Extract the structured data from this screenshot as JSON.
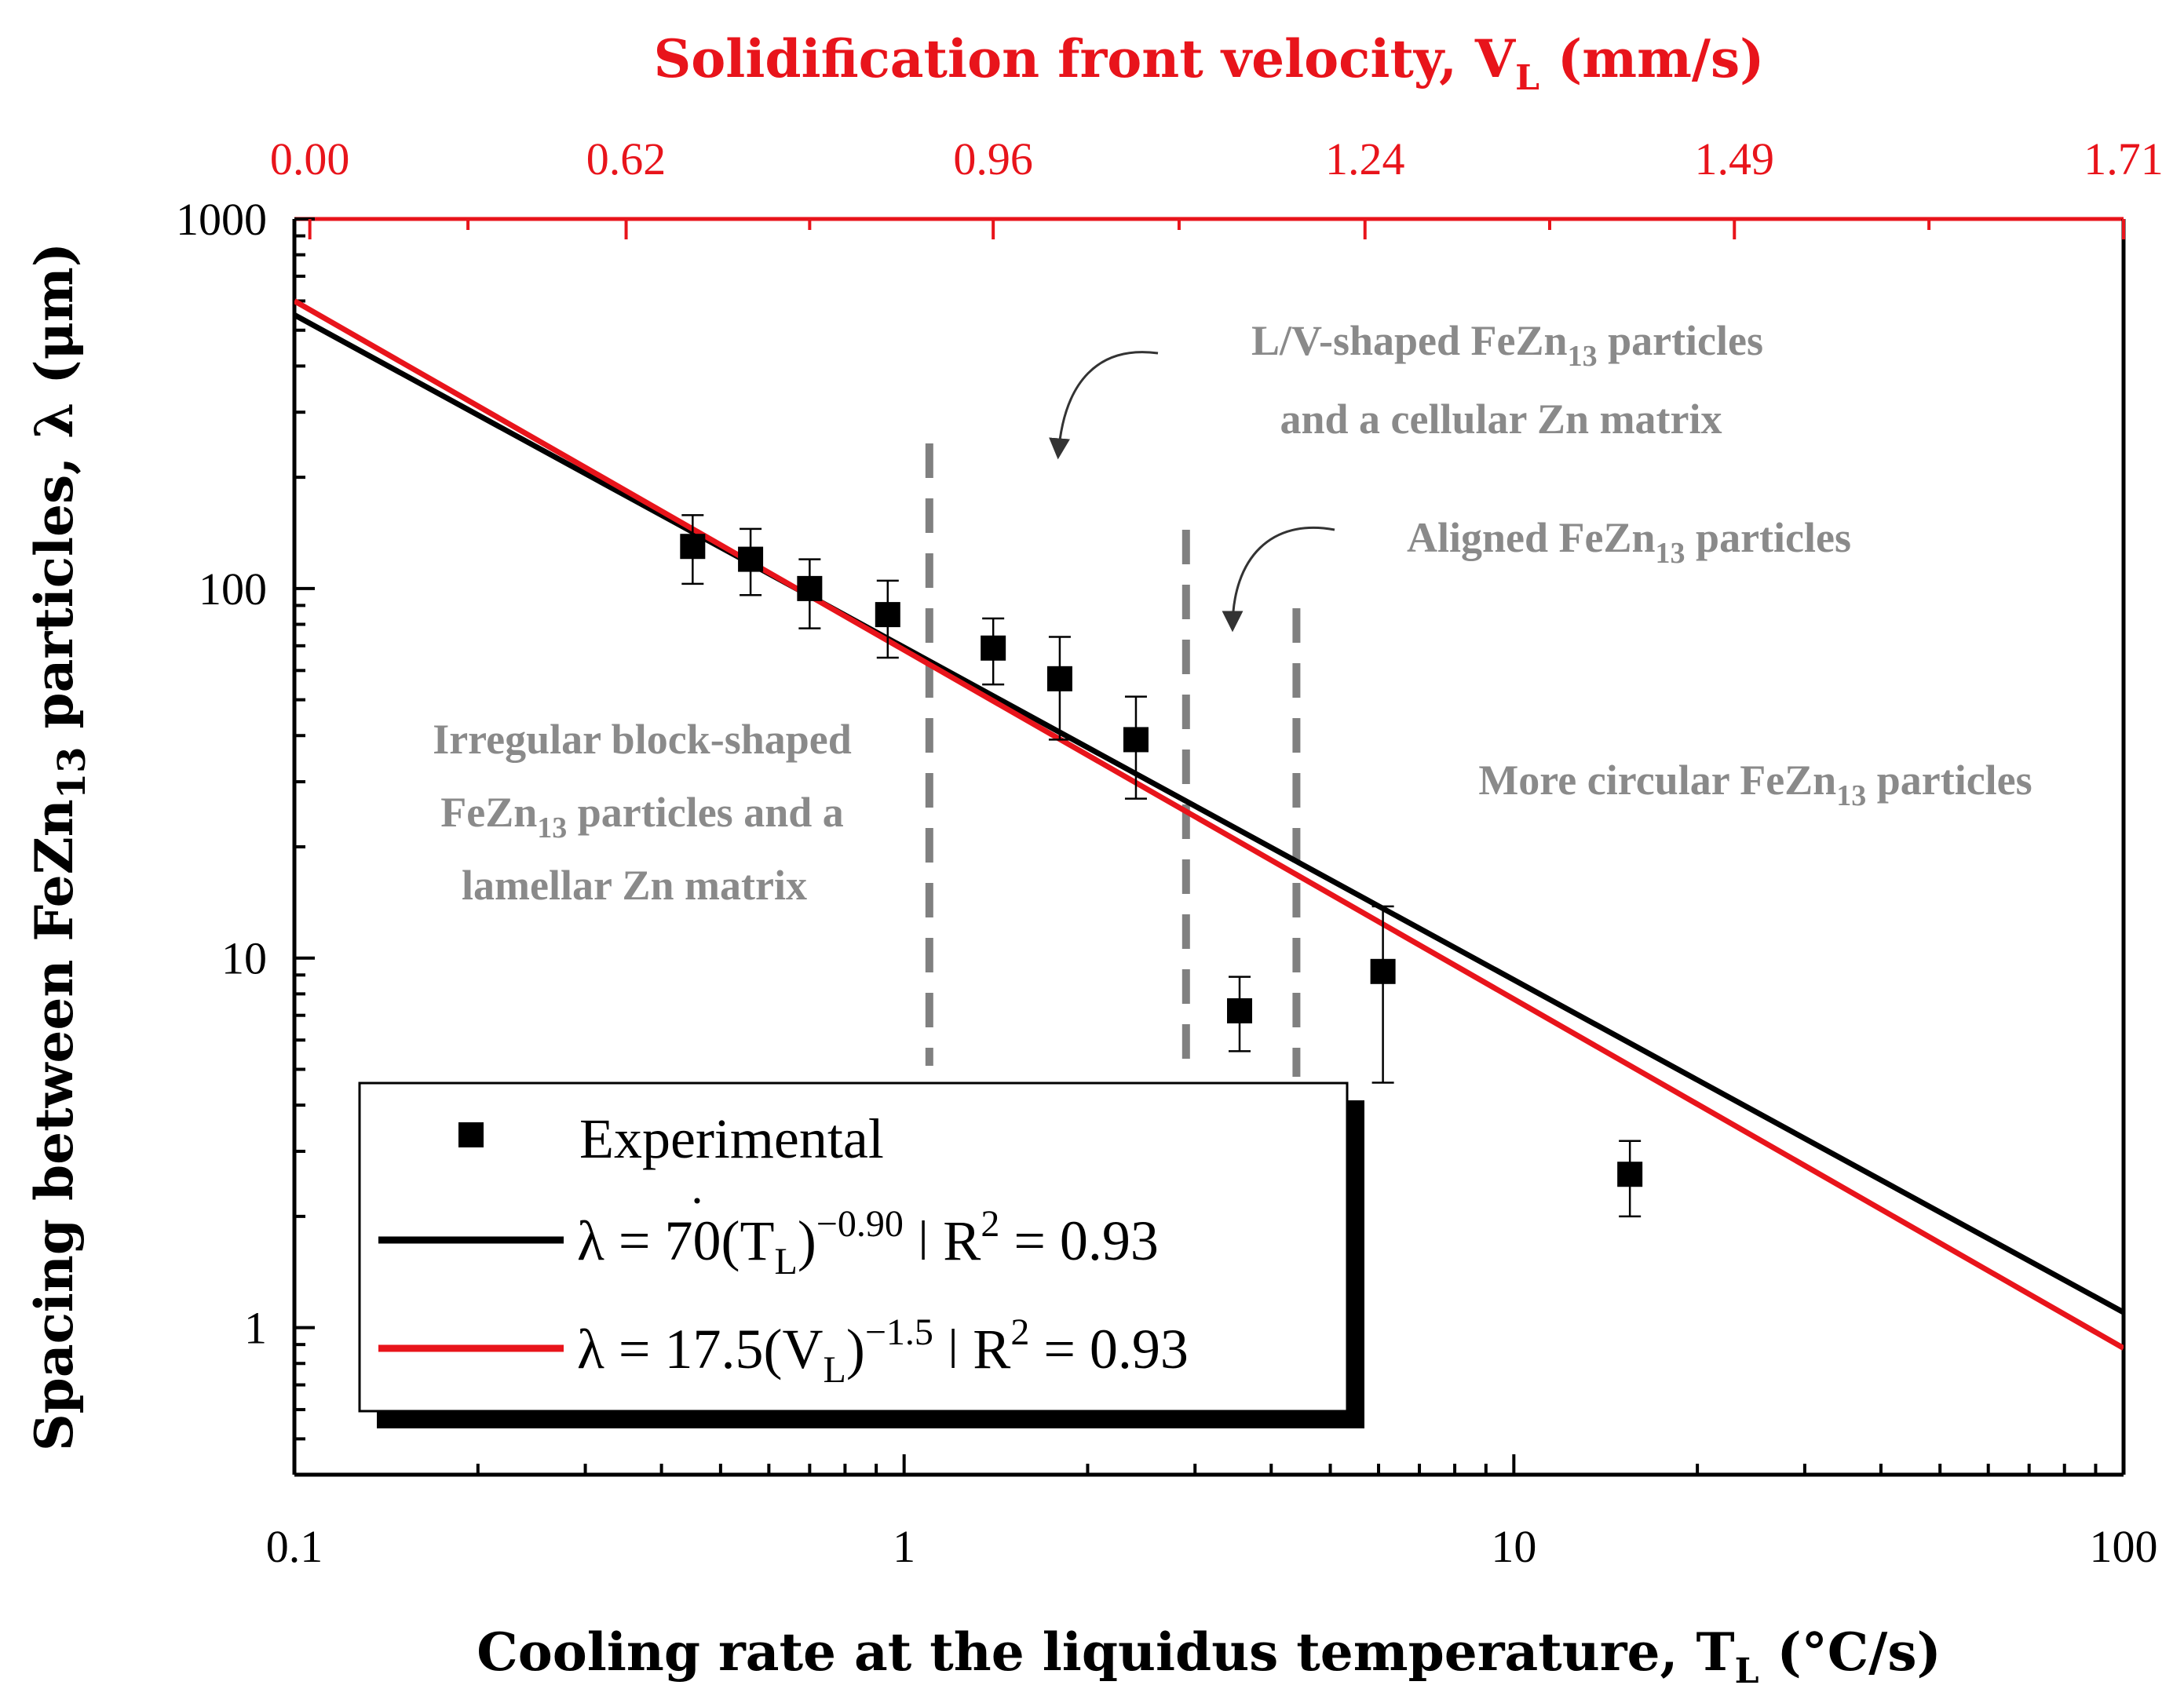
{
  "chart_data": {
    "type": "scatter",
    "x_scale": "log",
    "y_scale": "log",
    "xlabel_prefix": "Cooling rate at the liquidus temperature, ",
    "xlabel_symbol": "T",
    "xlabel_sub": "L",
    "xlabel_suffix": " (°C/s)",
    "ylabel_prefix": "Spacing between FeZn",
    "ylabel_sub": "13",
    "ylabel_suffix": " particles, λ (μm)",
    "top_axis_label_prefix": "Solidification front velocity, V",
    "top_axis_label_sub": "L",
    "top_axis_label_suffix": " (mm/s)",
    "top_axis_color": "#e8141b",
    "xlim": [
      0.1,
      100
    ],
    "ylim": [
      0.4,
      1000
    ],
    "x_ticks": [
      {
        "value": 0.1,
        "label": "0.1"
      },
      {
        "value": 1,
        "label": "1"
      },
      {
        "value": 10,
        "label": "10"
      },
      {
        "value": 100,
        "label": "100"
      }
    ],
    "y_ticks": [
      {
        "value": 1,
        "label": "1"
      },
      {
        "value": 10,
        "label": "10"
      },
      {
        "value": 100,
        "label": "100"
      },
      {
        "value": 1000,
        "label": "1000"
      }
    ],
    "top_ticks": [
      {
        "x": 0.106,
        "label": "0.00"
      },
      {
        "x": 0.35,
        "label": "0.62"
      },
      {
        "x": 1.4,
        "label": "0.96"
      },
      {
        "x": 5.7,
        "label": "1.24"
      },
      {
        "x": 23,
        "label": "1.49"
      },
      {
        "x": 100,
        "label": "1.71"
      }
    ],
    "series": [
      {
        "name": "Experimental",
        "marker": "square",
        "color": "#000000",
        "points": [
          {
            "x": 0.45,
            "y": 130,
            "y_low": 103,
            "y_high": 158
          },
          {
            "x": 0.56,
            "y": 120,
            "y_low": 96,
            "y_high": 145
          },
          {
            "x": 0.7,
            "y": 100,
            "y_low": 78,
            "y_high": 120
          },
          {
            "x": 0.94,
            "y": 85,
            "y_low": 65,
            "y_high": 105
          },
          {
            "x": 1.4,
            "y": 69,
            "y_low": 55,
            "y_high": 83
          },
          {
            "x": 1.8,
            "y": 57,
            "y_low": 39,
            "y_high": 74
          },
          {
            "x": 2.4,
            "y": 39,
            "y_low": 27,
            "y_high": 51
          },
          {
            "x": 3.55,
            "y": 7.2,
            "y_low": 5.6,
            "y_high": 8.9
          },
          {
            "x": 6.1,
            "y": 9.2,
            "y_low": 4.6,
            "y_high": 13.8
          },
          {
            "x": 15.5,
            "y": 2.6,
            "y_low": 2.0,
            "y_high": 3.2
          }
        ]
      },
      {
        "name_prefix": "λ = 70(",
        "name_symbol": "T",
        "name_sub": "L",
        "name_close": ")",
        "name_sup": "−0.90",
        "name_suffix": "  ǀ  R",
        "name_r_sup": "2",
        "name_r_value": " = 0.93",
        "type": "line",
        "color": "#000000",
        "x": [
          0.1,
          100
        ],
        "y": [
          550,
          1.1
        ]
      },
      {
        "name_prefix": "λ  = 17.5(V",
        "name_sub": "L",
        "name_close": ")",
        "name_sup": "−1.5",
        "name_suffix": "  ǀ  R",
        "name_r_sup": "2",
        "name_r_value": " = 0.93",
        "type": "line",
        "color": "#e8141b",
        "x": [
          0.1,
          100
        ],
        "y": [
          600,
          0.88
        ]
      }
    ],
    "region_boundaries_x": [
      1.1,
      2.9,
      4.4
    ],
    "annotations": {
      "irregular": [
        "Irregular block-shaped",
        "FeZn13 particles and a",
        "lamellar Zn matrix"
      ],
      "lv_line1_prefix": "L/V-shaped FeZn",
      "lv_line1_sub": "13",
      "lv_line1_suffix": " particles",
      "lv_line2": "and a cellular Zn matrix",
      "aligned_prefix": "Aligned FeZn",
      "aligned_sub": "13",
      "aligned_suffix": " particles",
      "circular_prefix": "More circular FeZn",
      "circular_sub": "13",
      "circular_suffix": " particles",
      "irregular_line2_prefix": "FeZn",
      "irregular_line2_sub": "13",
      "irregular_line2_suffix": " particles and a"
    },
    "grid": false,
    "legend_position": "bottom-left"
  }
}
